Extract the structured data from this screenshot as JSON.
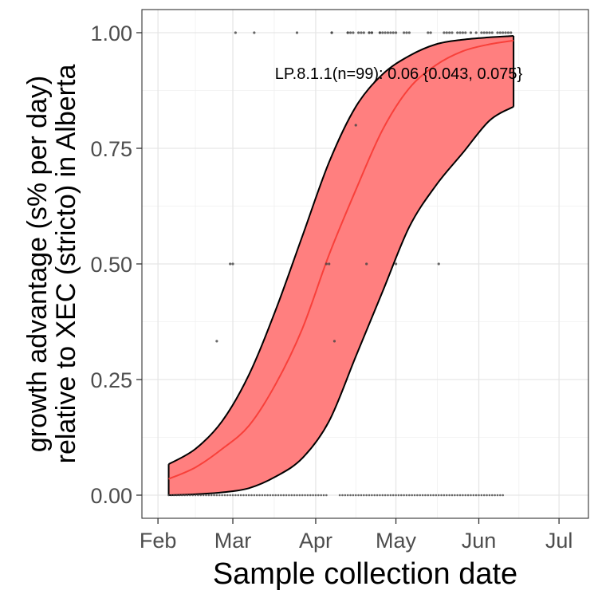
{
  "chart_data": {
    "type": "line",
    "title": "",
    "xlabel": "Sample collection date",
    "ylabel_lines": [
      "growth advantage (s% per day)",
      "relative to XEC (stricto) in Alberta"
    ],
    "annotation": "LP.8.1.1(n=99): 0.06 {0.043, 0.075}",
    "x_tick_labels": [
      "Feb",
      "Mar",
      "Apr",
      "May",
      "Jun",
      "Jul"
    ],
    "x_tick_dates": [
      "2025-02-01",
      "2025-03-01",
      "2025-04-01",
      "2025-05-01",
      "2025-06-01",
      "2025-07-01"
    ],
    "y_tick_labels": [
      "0.00",
      "0.25",
      "0.50",
      "0.75",
      "1.00"
    ],
    "y_ticks": [
      0,
      0.25,
      0.5,
      0.75,
      1
    ],
    "xlim": [
      "2025-01-26",
      "2025-07-12"
    ],
    "ylim": [
      -0.05,
      1.05
    ],
    "grid": true,
    "colors": {
      "fit": "#f8403a",
      "band": "#ff7f7f",
      "band_edge": "#000000",
      "points": "#444444"
    },
    "series": [
      {
        "name": "LP.8.1.1",
        "x": [
          "2025-02-05",
          "2025-02-15",
          "2025-02-25",
          "2025-03-07",
          "2025-03-17",
          "2025-03-27",
          "2025-04-06",
          "2025-04-16",
          "2025-04-26",
          "2025-05-06",
          "2025-05-16",
          "2025-05-26",
          "2025-06-05",
          "2025-06-14"
        ],
        "fit": [
          0.035,
          0.06,
          0.1,
          0.15,
          0.24,
          0.36,
          0.52,
          0.66,
          0.79,
          0.88,
          0.93,
          0.96,
          0.975,
          0.983
        ],
        "lower": [
          0.0,
          0.002,
          0.006,
          0.015,
          0.04,
          0.08,
          0.16,
          0.3,
          0.44,
          0.58,
          0.67,
          0.74,
          0.81,
          0.84
        ],
        "upper": [
          0.067,
          0.1,
          0.16,
          0.26,
          0.4,
          0.56,
          0.72,
          0.84,
          0.91,
          0.95,
          0.975,
          0.985,
          0.99,
          0.993
        ]
      }
    ],
    "observations": {
      "x": [
        "2025-02-23",
        "2025-02-28",
        "2025-03-01",
        "2025-03-02",
        "2025-03-09",
        "2025-03-25",
        "2025-04-05",
        "2025-04-06",
        "2025-04-07",
        "2025-04-07",
        "2025-04-08",
        "2025-04-13",
        "2025-04-13",
        "2025-04-14",
        "2025-04-15",
        "2025-04-16",
        "2025-04-17",
        "2025-04-18",
        "2025-04-19",
        "2025-04-20",
        "2025-04-21",
        "2025-04-21",
        "2025-04-22",
        "2025-04-22",
        "2025-04-25",
        "2025-04-25",
        "2025-04-26",
        "2025-04-27",
        "2025-04-28",
        "2025-04-29",
        "2025-04-30",
        "2025-05-01",
        "2025-05-01",
        "2025-05-04",
        "2025-05-05",
        "2025-05-06",
        "2025-05-13",
        "2025-05-14",
        "2025-05-17",
        "2025-05-19",
        "2025-05-20",
        "2025-05-21",
        "2025-05-22",
        "2025-05-24",
        "2025-05-25",
        "2025-05-26",
        "2025-05-27",
        "2025-05-29",
        "2025-05-31",
        "2025-06-02",
        "2025-06-03",
        "2025-06-04",
        "2025-06-05",
        "2025-06-06",
        "2025-06-08",
        "2025-06-09",
        "2025-06-10",
        "2025-06-11",
        "2025-06-12",
        "2025-06-13"
      ],
      "y": [
        0.333,
        0.5,
        0.5,
        1,
        1,
        1,
        0.5,
        0.5,
        1,
        1,
        0.333,
        1,
        1,
        1,
        1,
        0.8,
        1,
        1,
        1,
        0.5,
        1,
        1,
        1,
        1,
        1,
        1,
        1,
        1,
        1,
        1,
        1,
        1,
        0.5,
        1,
        1,
        1,
        1,
        1,
        0.5,
        1,
        1,
        1,
        1,
        1,
        1,
        1,
        1,
        1,
        1,
        1,
        1,
        1,
        1,
        1,
        1,
        1,
        1,
        1,
        1,
        1
      ]
    }
  }
}
